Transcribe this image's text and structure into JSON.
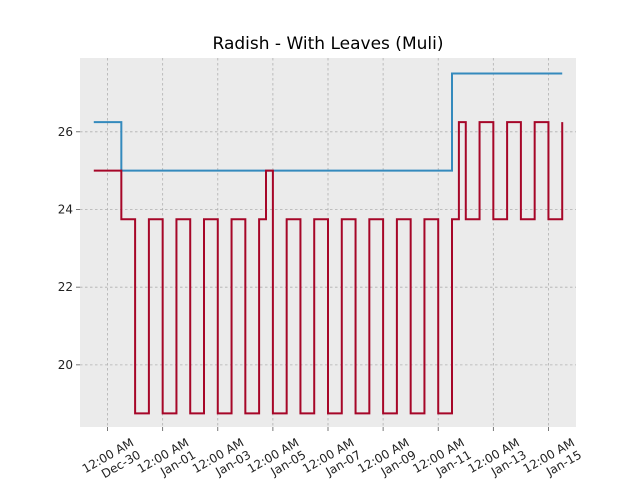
{
  "chart_data": {
    "type": "line",
    "title": "Radish - With Leaves (Muli)",
    "xlabel": "",
    "ylabel": "",
    "step": true,
    "grid": true,
    "background": "#ebebeb",
    "x_start": "2019-12-29",
    "x_end": "2020-01-16",
    "ylim": [
      18.4,
      27.9
    ],
    "y_ticks": [
      20,
      22,
      24,
      26
    ],
    "x_ticks": [
      {
        "date": "2019-12-30",
        "label": [
          "12:00 AM",
          "Dec-30"
        ]
      },
      {
        "date": "2020-01-01",
        "label": [
          "12:00 AM",
          "Jan-01"
        ]
      },
      {
        "date": "2020-01-03",
        "label": [
          "12:00 AM",
          "Jan-03"
        ]
      },
      {
        "date": "2020-01-05",
        "label": [
          "12:00 AM",
          "Jan-05"
        ]
      },
      {
        "date": "2020-01-07",
        "label": [
          "12:00 AM",
          "Jan-07"
        ]
      },
      {
        "date": "2020-01-09",
        "label": [
          "12:00 AM",
          "Jan-09"
        ]
      },
      {
        "date": "2020-01-11",
        "label": [
          "12:00 AM",
          "Jan-11"
        ]
      },
      {
        "date": "2020-01-13",
        "label": [
          "12:00 AM",
          "Jan-13"
        ]
      },
      {
        "date": "2020-01-15",
        "label": [
          "12:00 AM",
          "Jan-15"
        ]
      }
    ],
    "series": [
      {
        "color": "#348abd",
        "points": [
          {
            "x": "2019-12-29 12:00",
            "y": 26.25
          },
          {
            "x": "2019-12-30 12:00",
            "y": 25.0
          },
          {
            "x": "2020-01-11 12:00",
            "y": 27.5
          },
          {
            "x": "2020-01-15 12:00",
            "y": 27.5
          }
        ]
      },
      {
        "color": "#a60628",
        "points": [
          {
            "x": "2019-12-29 12:00",
            "y": 25.0
          },
          {
            "x": "2019-12-30 12:00",
            "y": 23.75
          },
          {
            "x": "2019-12-31 00:00",
            "y": 18.75
          },
          {
            "x": "2019-12-31 12:00",
            "y": 23.75
          },
          {
            "x": "2020-01-01 00:00",
            "y": 18.75
          },
          {
            "x": "2020-01-01 12:00",
            "y": 23.75
          },
          {
            "x": "2020-01-02 00:00",
            "y": 18.75
          },
          {
            "x": "2020-01-02 12:00",
            "y": 23.75
          },
          {
            "x": "2020-01-03 00:00",
            "y": 18.75
          },
          {
            "x": "2020-01-03 12:00",
            "y": 23.75
          },
          {
            "x": "2020-01-04 00:00",
            "y": 18.75
          },
          {
            "x": "2020-01-04 12:00",
            "y": 23.75
          },
          {
            "x": "2020-01-04 18:00",
            "y": 25.0
          },
          {
            "x": "2020-01-05 00:00",
            "y": 18.75
          },
          {
            "x": "2020-01-05 12:00",
            "y": 23.75
          },
          {
            "x": "2020-01-06 00:00",
            "y": 18.75
          },
          {
            "x": "2020-01-06 12:00",
            "y": 23.75
          },
          {
            "x": "2020-01-07 00:00",
            "y": 18.75
          },
          {
            "x": "2020-01-07 12:00",
            "y": 23.75
          },
          {
            "x": "2020-01-08 00:00",
            "y": 18.75
          },
          {
            "x": "2020-01-08 12:00",
            "y": 23.75
          },
          {
            "x": "2020-01-09 00:00",
            "y": 18.75
          },
          {
            "x": "2020-01-09 12:00",
            "y": 23.75
          },
          {
            "x": "2020-01-10 00:00",
            "y": 18.75
          },
          {
            "x": "2020-01-10 12:00",
            "y": 23.75
          },
          {
            "x": "2020-01-11 00:00",
            "y": 18.75
          },
          {
            "x": "2020-01-11 12:00",
            "y": 23.75
          },
          {
            "x": "2020-01-11 18:00",
            "y": 26.25
          },
          {
            "x": "2020-01-12 00:00",
            "y": 23.75
          },
          {
            "x": "2020-01-12 12:00",
            "y": 26.25
          },
          {
            "x": "2020-01-13 00:00",
            "y": 23.75
          },
          {
            "x": "2020-01-13 12:00",
            "y": 26.25
          },
          {
            "x": "2020-01-14 00:00",
            "y": 23.75
          },
          {
            "x": "2020-01-14 12:00",
            "y": 26.25
          },
          {
            "x": "2020-01-15 00:00",
            "y": 23.75
          },
          {
            "x": "2020-01-15 12:00",
            "y": 26.25
          }
        ]
      }
    ]
  }
}
